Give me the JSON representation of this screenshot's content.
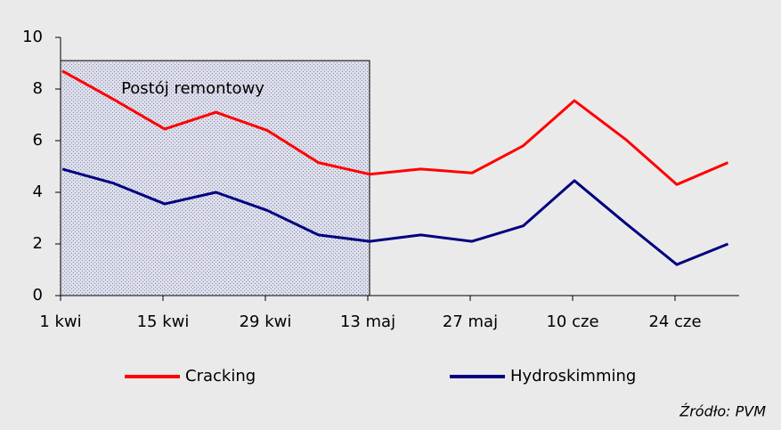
{
  "chart_data": {
    "type": "line",
    "categories": [
      "1 kwi",
      null,
      "15 kwi",
      null,
      "29 kwi",
      null,
      "13 maj",
      null,
      "27 maj",
      null,
      "10 cze",
      null,
      "24 cze",
      null
    ],
    "series": [
      {
        "name": "Cracking",
        "color": "#ff0000",
        "values": [
          8.7,
          7.6,
          6.45,
          7.1,
          6.4,
          5.15,
          4.7,
          4.9,
          4.75,
          5.8,
          7.55,
          6.05,
          4.3,
          5.15
        ]
      },
      {
        "name": "Hydroskimming",
        "color": "#000080",
        "values": [
          4.9,
          4.35,
          3.55,
          4.0,
          3.3,
          2.35,
          2.1,
          2.35,
          2.1,
          2.7,
          4.45,
          2.8,
          1.2,
          2.0
        ]
      }
    ],
    "ylim": [
      0,
      10
    ],
    "yticks": [
      0,
      2,
      4,
      6,
      8,
      10
    ],
    "shaded_region": {
      "label": "Postój remontowy",
      "x": [
        0,
        6
      ],
      "y": [
        0,
        9.1
      ]
    },
    "source": "Źródło: PVM",
    "grid": false
  }
}
